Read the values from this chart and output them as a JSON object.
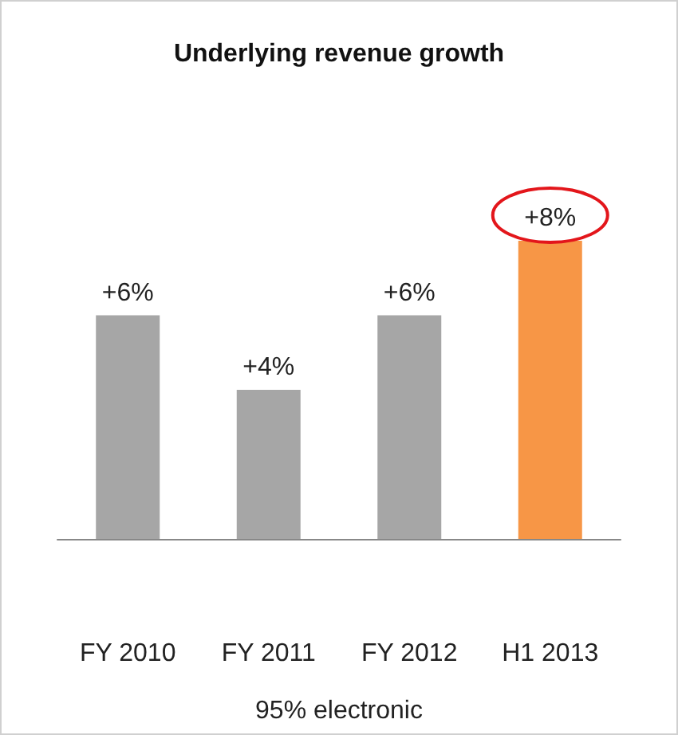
{
  "chart_data": {
    "type": "bar",
    "title": "Underlying revenue growth",
    "categories": [
      "FY 2010",
      "FY 2011",
      "FY 2012",
      "H1 2013"
    ],
    "values": [
      6,
      4,
      6,
      8
    ],
    "colors": [
      "#a6a6a6",
      "#a6a6a6",
      "#a6a6a6",
      "#f79646"
    ],
    "value_labels": [
      "+6%",
      "+4%",
      "+6%",
      "+8%"
    ],
    "relative": false,
    "annotations": [
      "95% electronic"
    ]
  }
}
